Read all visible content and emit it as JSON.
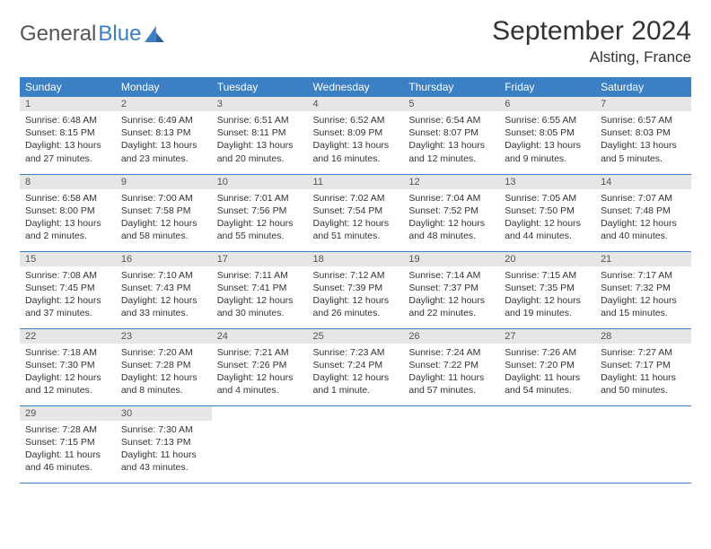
{
  "brand": {
    "part1": "General",
    "part2": "Blue"
  },
  "title": "September 2024",
  "location": "Alsting, France",
  "colors": {
    "header_bg": "#3b7fc4",
    "header_text": "#ffffff",
    "daynum_bg": "#e6e6e6",
    "border": "#3b7fc4",
    "text": "#333333",
    "brand_gray": "#555555",
    "brand_blue": "#3b7fc4"
  },
  "weekdays": [
    "Sunday",
    "Monday",
    "Tuesday",
    "Wednesday",
    "Thursday",
    "Friday",
    "Saturday"
  ],
  "weeks": [
    [
      {
        "n": "1",
        "sr": "6:48 AM",
        "ss": "8:15 PM",
        "dl": "13 hours and 27 minutes."
      },
      {
        "n": "2",
        "sr": "6:49 AM",
        "ss": "8:13 PM",
        "dl": "13 hours and 23 minutes."
      },
      {
        "n": "3",
        "sr": "6:51 AM",
        "ss": "8:11 PM",
        "dl": "13 hours and 20 minutes."
      },
      {
        "n": "4",
        "sr": "6:52 AM",
        "ss": "8:09 PM",
        "dl": "13 hours and 16 minutes."
      },
      {
        "n": "5",
        "sr": "6:54 AM",
        "ss": "8:07 PM",
        "dl": "13 hours and 12 minutes."
      },
      {
        "n": "6",
        "sr": "6:55 AM",
        "ss": "8:05 PM",
        "dl": "13 hours and 9 minutes."
      },
      {
        "n": "7",
        "sr": "6:57 AM",
        "ss": "8:03 PM",
        "dl": "13 hours and 5 minutes."
      }
    ],
    [
      {
        "n": "8",
        "sr": "6:58 AM",
        "ss": "8:00 PM",
        "dl": "13 hours and 2 minutes."
      },
      {
        "n": "9",
        "sr": "7:00 AM",
        "ss": "7:58 PM",
        "dl": "12 hours and 58 minutes."
      },
      {
        "n": "10",
        "sr": "7:01 AM",
        "ss": "7:56 PM",
        "dl": "12 hours and 55 minutes."
      },
      {
        "n": "11",
        "sr": "7:02 AM",
        "ss": "7:54 PM",
        "dl": "12 hours and 51 minutes."
      },
      {
        "n": "12",
        "sr": "7:04 AM",
        "ss": "7:52 PM",
        "dl": "12 hours and 48 minutes."
      },
      {
        "n": "13",
        "sr": "7:05 AM",
        "ss": "7:50 PM",
        "dl": "12 hours and 44 minutes."
      },
      {
        "n": "14",
        "sr": "7:07 AM",
        "ss": "7:48 PM",
        "dl": "12 hours and 40 minutes."
      }
    ],
    [
      {
        "n": "15",
        "sr": "7:08 AM",
        "ss": "7:45 PM",
        "dl": "12 hours and 37 minutes."
      },
      {
        "n": "16",
        "sr": "7:10 AM",
        "ss": "7:43 PM",
        "dl": "12 hours and 33 minutes."
      },
      {
        "n": "17",
        "sr": "7:11 AM",
        "ss": "7:41 PM",
        "dl": "12 hours and 30 minutes."
      },
      {
        "n": "18",
        "sr": "7:12 AM",
        "ss": "7:39 PM",
        "dl": "12 hours and 26 minutes."
      },
      {
        "n": "19",
        "sr": "7:14 AM",
        "ss": "7:37 PM",
        "dl": "12 hours and 22 minutes."
      },
      {
        "n": "20",
        "sr": "7:15 AM",
        "ss": "7:35 PM",
        "dl": "12 hours and 19 minutes."
      },
      {
        "n": "21",
        "sr": "7:17 AM",
        "ss": "7:32 PM",
        "dl": "12 hours and 15 minutes."
      }
    ],
    [
      {
        "n": "22",
        "sr": "7:18 AM",
        "ss": "7:30 PM",
        "dl": "12 hours and 12 minutes."
      },
      {
        "n": "23",
        "sr": "7:20 AM",
        "ss": "7:28 PM",
        "dl": "12 hours and 8 minutes."
      },
      {
        "n": "24",
        "sr": "7:21 AM",
        "ss": "7:26 PM",
        "dl": "12 hours and 4 minutes."
      },
      {
        "n": "25",
        "sr": "7:23 AM",
        "ss": "7:24 PM",
        "dl": "12 hours and 1 minute."
      },
      {
        "n": "26",
        "sr": "7:24 AM",
        "ss": "7:22 PM",
        "dl": "11 hours and 57 minutes."
      },
      {
        "n": "27",
        "sr": "7:26 AM",
        "ss": "7:20 PM",
        "dl": "11 hours and 54 minutes."
      },
      {
        "n": "28",
        "sr": "7:27 AM",
        "ss": "7:17 PM",
        "dl": "11 hours and 50 minutes."
      }
    ],
    [
      {
        "n": "29",
        "sr": "7:28 AM",
        "ss": "7:15 PM",
        "dl": "11 hours and 46 minutes."
      },
      {
        "n": "30",
        "sr": "7:30 AM",
        "ss": "7:13 PM",
        "dl": "11 hours and 43 minutes."
      },
      null,
      null,
      null,
      null,
      null
    ]
  ],
  "labels": {
    "sunrise": "Sunrise:",
    "sunset": "Sunset:",
    "daylight": "Daylight:"
  }
}
